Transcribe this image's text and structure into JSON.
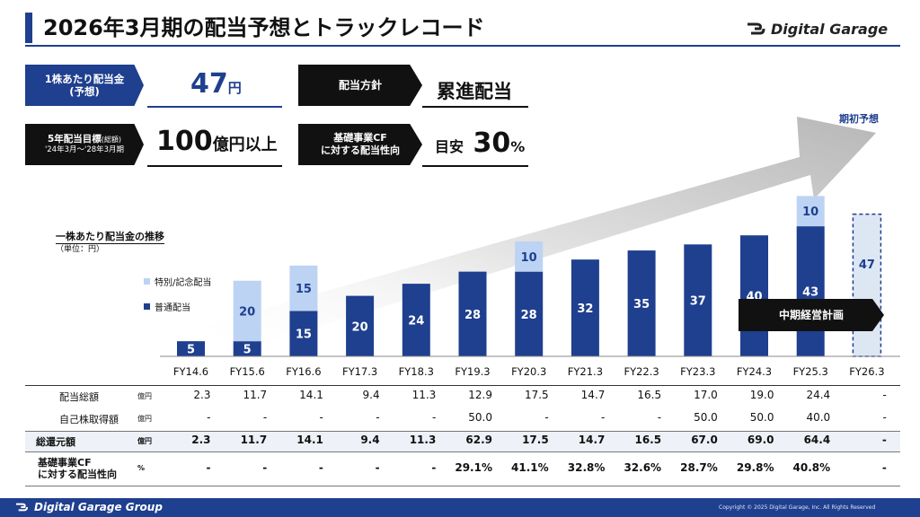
{
  "header": {
    "title": "2026年3月期の配当予想とトラックレコード",
    "logo_text": "Digital Garage"
  },
  "summary": {
    "dps_label_line1": "1株あたり配当金",
    "dps_label_line2": "(予想)",
    "dps_value": "47",
    "dps_unit": "円",
    "policy_label": "配当方針",
    "policy_value": "累進配当",
    "target_label_line1": "5年配当目標",
    "target_label_small": "(総額)",
    "target_label_line2": "'24年3月～'28年3月期",
    "target_value": "100",
    "target_unit": "億円以上",
    "cf_label_line1": "基礎事業CF",
    "cf_label_line2": "に対する配当性向",
    "cf_prefix": "目安",
    "cf_value": "30",
    "cf_unit": "%"
  },
  "chart_data": {
    "type": "bar",
    "title": "一株あたり配当金の推移",
    "subtitle": "（単位：円）",
    "categories": [
      "FY14.6",
      "FY15.6",
      "FY16.6",
      "FY17.3",
      "FY18.3",
      "FY19.3",
      "FY20.3",
      "FY21.3",
      "FY22.3",
      "FY23.3",
      "FY24.3",
      "FY25.3",
      "FY26.3"
    ],
    "series": [
      {
        "name": "普通配当",
        "values": [
          5,
          5,
          15,
          20,
          24,
          28,
          28,
          32,
          35,
          37,
          40,
          43,
          47
        ]
      },
      {
        "name": "特別/記念配当",
        "values": [
          0,
          20,
          15,
          0,
          0,
          0,
          10,
          0,
          0,
          0,
          0,
          10,
          0
        ]
      }
    ],
    "forecast_label": "期初予想",
    "plan_label": "中期経営計画",
    "colors": {
      "regular": "#1f3f8f",
      "special": "#bcd3f3",
      "forecast": "#dde7f4"
    }
  },
  "table": {
    "rows": [
      {
        "label": "配当総額",
        "unit": "億円",
        "bold": false,
        "values": [
          "2.3",
          "11.7",
          "14.1",
          "9.4",
          "11.3",
          "12.9",
          "17.5",
          "14.7",
          "16.5",
          "17.0",
          "19.0",
          "24.4",
          "-"
        ]
      },
      {
        "label": "自己株取得額",
        "unit": "億円",
        "bold": false,
        "values": [
          "-",
          "-",
          "-",
          "-",
          "-",
          "50.0",
          "-",
          "-",
          "-",
          "50.0",
          "50.0",
          "40.0",
          "-"
        ]
      },
      {
        "label": "総還元額",
        "unit": "億円",
        "bold": true,
        "values": [
          "2.3",
          "11.7",
          "14.1",
          "9.4",
          "11.3",
          "62.9",
          "17.5",
          "14.7",
          "16.5",
          "67.0",
          "69.0",
          "64.4",
          "-"
        ]
      },
      {
        "label": "基礎事業CF\nに対する配当性向",
        "unit": "%",
        "bold": true,
        "values": [
          "-",
          "-",
          "-",
          "-",
          "-",
          "29.1%",
          "41.1%",
          "32.8%",
          "32.6%",
          "28.7%",
          "29.8%",
          "40.8%",
          "-"
        ]
      }
    ]
  },
  "footer": {
    "logo_text": "Digital Garage Group",
    "copyright": "Copyright © 2025 Digital Garage, Inc. All Rights Reserved"
  }
}
